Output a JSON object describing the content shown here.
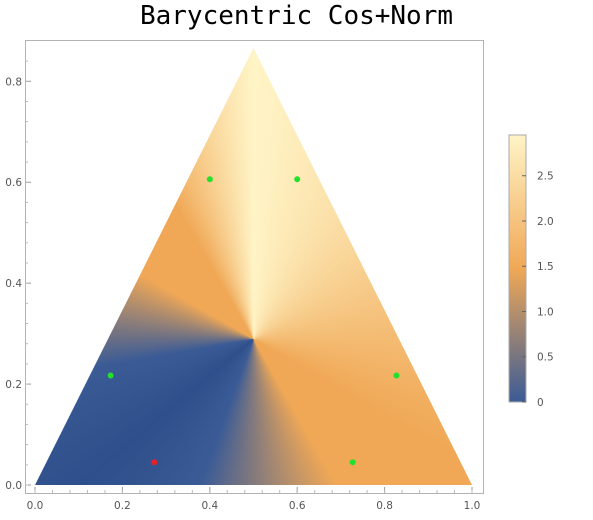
{
  "chart_data": {
    "type": "heatmap",
    "title": "Barycentric Cos+Norm",
    "xlabel": "",
    "ylabel": "",
    "xlim": [
      0.0,
      1.0
    ],
    "ylim": [
      0.0,
      0.866
    ],
    "x_ticks": [
      "0.0",
      "0.2",
      "0.4",
      "0.6",
      "0.8",
      "1.0"
    ],
    "y_ticks": [
      "0.0",
      "0.2",
      "0.4",
      "0.6",
      "0.8"
    ],
    "triangle": {
      "vertices": [
        [
          0.0,
          0.0
        ],
        [
          1.0,
          0.0
        ],
        [
          0.5,
          0.866
        ]
      ]
    },
    "angle_center": [
      0.5,
      0.289
    ],
    "colorbar": {
      "min": 0,
      "max": 2.95,
      "ticks": [
        "0",
        "0.5",
        "1.0",
        "1.5",
        "2.0",
        "2.5"
      ],
      "stops": [
        "#3b5b96",
        "#f0a856",
        "#fff4c6"
      ]
    },
    "points": [
      {
        "x": 0.273,
        "y": 0.045,
        "color": "#e5212b"
      },
      {
        "x": 0.727,
        "y": 0.045,
        "color": "#22e02c"
      },
      {
        "x": 0.173,
        "y": 0.217,
        "color": "#22e02c"
      },
      {
        "x": 0.827,
        "y": 0.217,
        "color": "#22e02c"
      },
      {
        "x": 0.4,
        "y": 0.606,
        "color": "#22e02c"
      },
      {
        "x": 0.6,
        "y": 0.606,
        "color": "#22e02c"
      }
    ]
  }
}
